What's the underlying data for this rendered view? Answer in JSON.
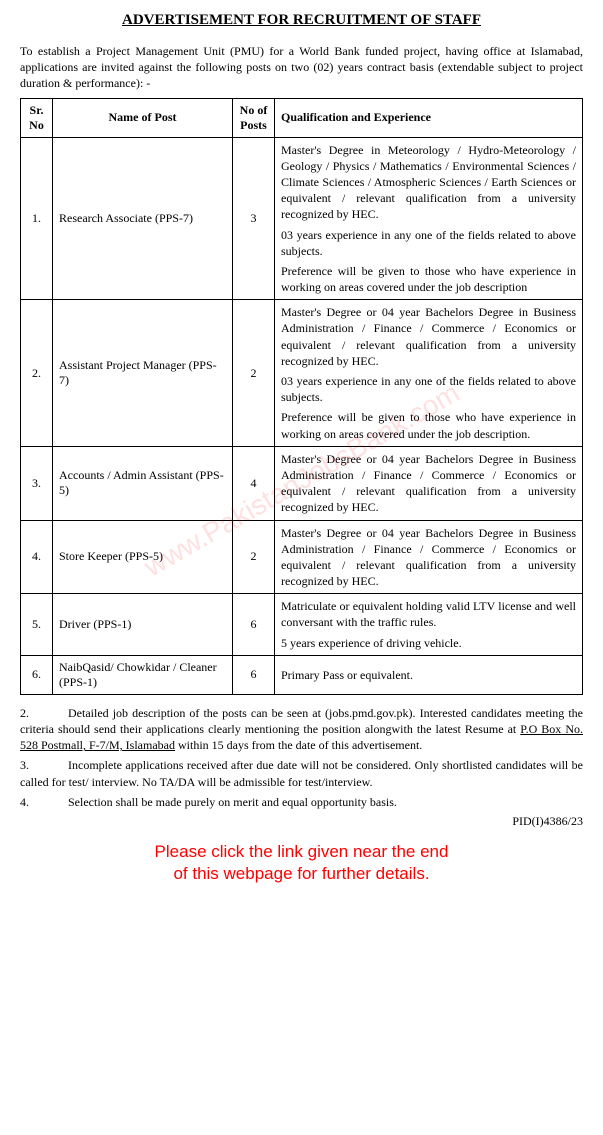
{
  "title": "ADVERTISEMENT FOR RECRUITMENT OF STAFF",
  "intro": "To establish a Project Management Unit (PMU) for a World Bank funded project, having office at Islamabad, applications are invited against the following posts on two (02) years contract basis (extendable subject to project duration & performance): -",
  "table": {
    "headers": {
      "sr": "Sr. No",
      "name": "Name of Post",
      "count": "No of Posts",
      "qual": "Qualification and Experience"
    },
    "rows": [
      {
        "sr": "1.",
        "name": "Research Associate (PPS-7)",
        "count": "3",
        "qual": [
          "Master's Degree in Meteorology / Hydro-Meteorology / Geology / Physics / Mathematics / Environmental Sciences / Climate Sciences / Atmospheric Sciences / Earth Sciences or equivalent / relevant qualification from a university recognized by HEC.",
          "03 years experience in any one of the fields related to above subjects.",
          "Preference will be given to those who have experience in working on areas covered under the job description"
        ]
      },
      {
        "sr": "2.",
        "name": "Assistant Project Manager (PPS-7)",
        "count": "2",
        "qual": [
          "Master's Degree or 04 year Bachelors Degree in Business Administration / Finance / Commerce / Economics or equivalent / relevant qualification from a university recognized by HEC.",
          "03 years experience in any one of the fields related to above subjects.",
          "Preference will be given to those who have experience in working on areas covered under the job description."
        ]
      },
      {
        "sr": "3.",
        "name": "Accounts / Admin Assistant (PPS-5)",
        "count": "4",
        "qual": [
          "Master's Degree or 04 year Bachelors Degree in Business Administration / Finance / Commerce / Economics or equivalent / relevant qualification from a university recognized by HEC."
        ]
      },
      {
        "sr": "4.",
        "name": "Store Keeper (PPS-5)",
        "count": "2",
        "qual": [
          "Master's Degree or 04 year Bachelors Degree in Business Administration / Finance / Commerce / Economics or equivalent / relevant qualification from a university recognized by HEC."
        ]
      },
      {
        "sr": "5.",
        "name": "Driver (PPS-1)",
        "count": "6",
        "qual": [
          "Matriculate or equivalent holding valid LTV license and well conversant with the traffic rules.",
          "5 years experience of driving vehicle."
        ]
      },
      {
        "sr": "6.",
        "name": "NaibQasid/ Chowkidar / Cleaner (PPS-1)",
        "count": "6",
        "qual": [
          "Primary Pass or equivalent."
        ]
      }
    ]
  },
  "footer": {
    "items": [
      {
        "num": "2.",
        "pre": "Detailed job description of the posts can be seen at (jobs.pmd.gov.pk). Interested candidates meeting the criteria should send their applications clearly mentioning the position alongwith the latest Resume at ",
        "underline": "P.O Box No. 528 Postmall, F-7/M, Islamabad",
        "post": " within 15 days from the date of this advertisement."
      },
      {
        "num": "3.",
        "pre": "Incomplete applications received after due date will not be considered. Only shortlisted candidates will be called for test/ interview. No TA/DA will be admissible for test/interview.",
        "underline": "",
        "post": ""
      },
      {
        "num": "4.",
        "pre": "Selection shall be made purely on merit and equal opportunity basis.",
        "underline": "",
        "post": ""
      }
    ]
  },
  "pid": "PID(I)4386/23",
  "cta_line1": "Please click the link given near the end",
  "cta_line2": "of this webpage for further details.",
  "watermark": "www.PakistanJobsBank.com",
  "colors": {
    "text": "#000000",
    "background": "#ffffff",
    "cta": "#ff0000",
    "border": "#000000",
    "watermark": "rgba(255,0,0,0.12)"
  }
}
